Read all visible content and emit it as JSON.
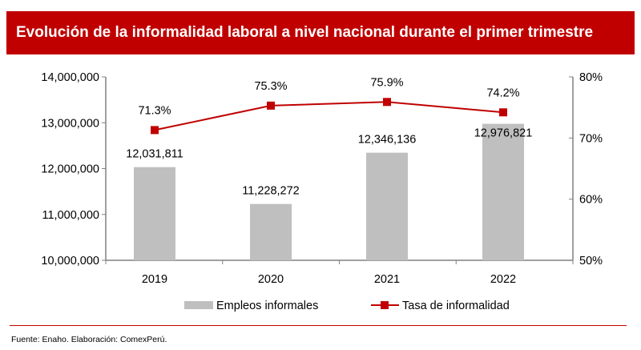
{
  "title": "Evolución de la informalidad laboral a nivel nacional durante el primer trimestre",
  "footer": "Fuente: Enaho. Elaboración: ComexPerú.",
  "chart_data": {
    "type": "bar+line",
    "categories": [
      "2019",
      "2020",
      "2021",
      "2022"
    ],
    "series": [
      {
        "name": "Empleos informales",
        "type": "bar",
        "axis": "left",
        "values": [
          12031811,
          11228272,
          12346136,
          12976821
        ],
        "labels": [
          "12,031,811",
          "11,228,272",
          "12,346,136",
          "12,976,821"
        ],
        "color": "#bfbfbf"
      },
      {
        "name": "Tasa de informalidad",
        "type": "line",
        "axis": "right",
        "values": [
          71.3,
          75.3,
          75.9,
          74.2
        ],
        "labels": [
          "71.3%",
          "75.3%",
          "75.9%",
          "74.2%"
        ],
        "color": "#c00000"
      }
    ],
    "y_left": {
      "range": [
        10000000,
        14000000
      ],
      "ticks": [
        "10,000,000",
        "11,000,000",
        "12,000,000",
        "13,000,000",
        "14,000,000"
      ]
    },
    "y_right": {
      "range": [
        50,
        80
      ],
      "ticks": [
        "50%",
        "60%",
        "70%",
        "80%"
      ]
    },
    "grid": false,
    "legend": "bottom"
  }
}
